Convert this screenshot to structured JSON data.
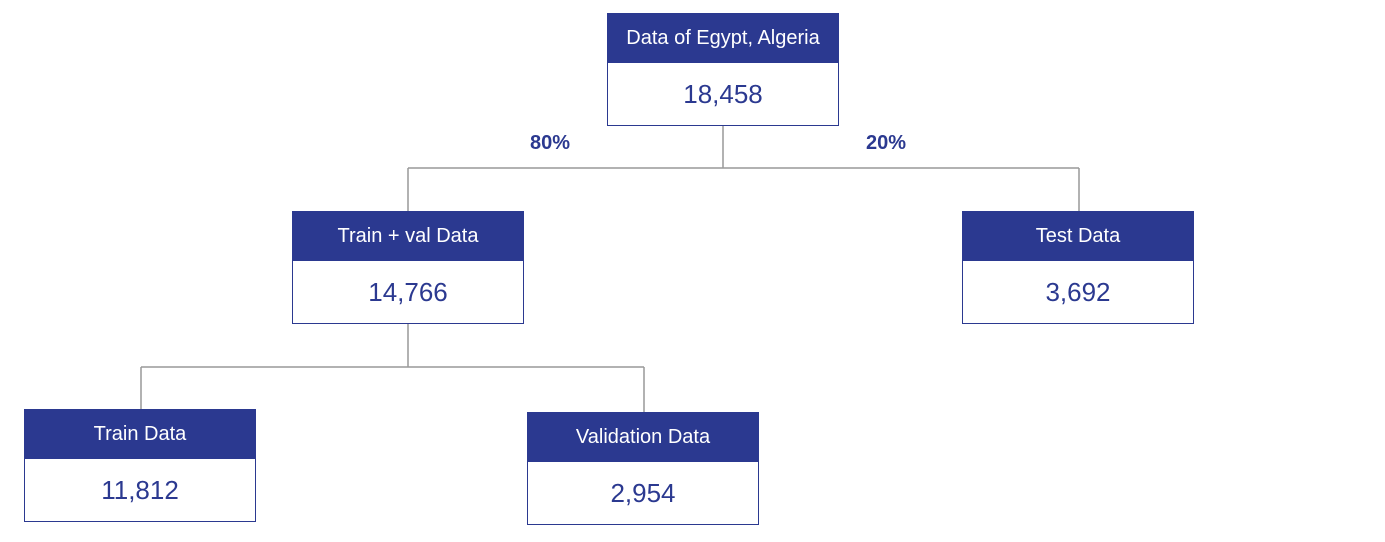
{
  "colors": {
    "node_fill": "#2b3990",
    "connector": "#999999",
    "background": "#ffffff"
  },
  "root": {
    "label": "Data of Egypt, Algeria",
    "count": "18,458"
  },
  "split_labels": {
    "left": "80%",
    "right": "20%"
  },
  "train_val": {
    "label": "Train + val Data",
    "count": "14,766"
  },
  "test": {
    "label": "Test Data",
    "count": "3,692"
  },
  "train": {
    "label": "Train Data",
    "count": "11,812"
  },
  "validation": {
    "label": "Validation Data",
    "count": "2,954"
  }
}
